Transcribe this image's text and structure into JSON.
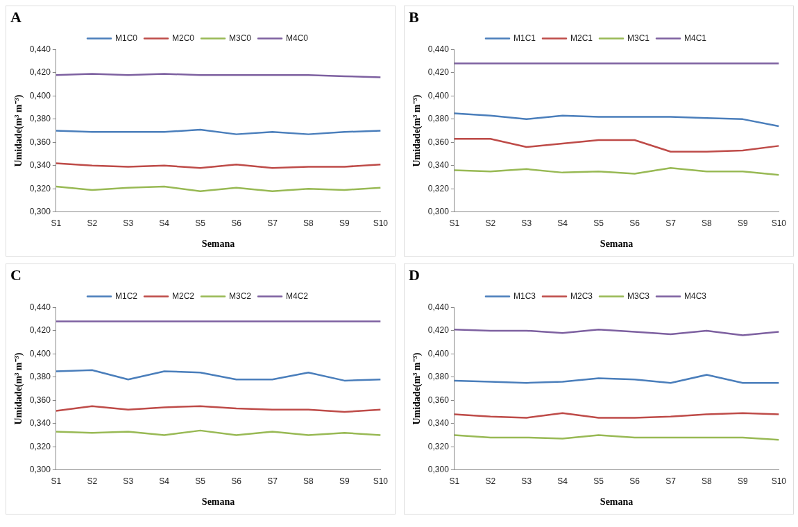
{
  "chart_data": [
    {
      "type": "line",
      "title": "A",
      "xlabel": "Semana",
      "ylabel": "Umidade(m³ m⁻³)",
      "categories": [
        "S1",
        "S2",
        "S3",
        "S4",
        "S5",
        "S6",
        "S7",
        "S8",
        "S9",
        "S10"
      ],
      "ylim": [
        0.3,
        0.44
      ],
      "yticks": [
        {
          "value": 0.3,
          "label": "0,300"
        },
        {
          "value": 0.32,
          "label": "0,320"
        },
        {
          "value": 0.34,
          "label": "0,340"
        },
        {
          "value": 0.36,
          "label": "0,360"
        },
        {
          "value": 0.38,
          "label": "0,380"
        },
        {
          "value": 0.4,
          "label": "0,400"
        },
        {
          "value": 0.42,
          "label": "0,420"
        },
        {
          "value": 0.44,
          "label": "0,440"
        }
      ],
      "grid": false,
      "legend": "top",
      "line_style": "solid",
      "series": [
        {
          "name": "M1C0",
          "color": "#4a7ebb",
          "values": [
            0.37,
            0.369,
            0.369,
            0.369,
            0.371,
            0.367,
            0.369,
            0.367,
            0.369,
            0.37
          ]
        },
        {
          "name": "M2C0",
          "color": "#be4b48",
          "values": [
            0.342,
            0.34,
            0.339,
            0.34,
            0.338,
            0.341,
            0.338,
            0.339,
            0.339,
            0.341
          ]
        },
        {
          "name": "M3C0",
          "color": "#98b954",
          "values": [
            0.322,
            0.319,
            0.321,
            0.322,
            0.318,
            0.321,
            0.318,
            0.32,
            0.319,
            0.321
          ]
        },
        {
          "name": "M4C0",
          "color": "#7d60a0",
          "values": [
            0.418,
            0.419,
            0.418,
            0.419,
            0.418,
            0.418,
            0.418,
            0.418,
            0.417,
            0.416
          ]
        }
      ]
    },
    {
      "type": "line",
      "title": "B",
      "xlabel": "Semana",
      "ylabel": "Umidade(m³ m⁻³)",
      "categories": [
        "S1",
        "S2",
        "S3",
        "S4",
        "S5",
        "S6",
        "S7",
        "S8",
        "S9",
        "S10"
      ],
      "ylim": [
        0.3,
        0.44
      ],
      "yticks": [
        {
          "value": 0.3,
          "label": "0,300"
        },
        {
          "value": 0.32,
          "label": "0,320"
        },
        {
          "value": 0.34,
          "label": "0,340"
        },
        {
          "value": 0.36,
          "label": "0,360"
        },
        {
          "value": 0.38,
          "label": "0,380"
        },
        {
          "value": 0.4,
          "label": "0,400"
        },
        {
          "value": 0.42,
          "label": "0,420"
        },
        {
          "value": 0.44,
          "label": "0,440"
        }
      ],
      "grid": false,
      "legend": "top",
      "line_style": "solid",
      "series": [
        {
          "name": "M1C1",
          "color": "#4a7ebb",
          "values": [
            0.385,
            0.383,
            0.38,
            0.383,
            0.382,
            0.382,
            0.382,
            0.381,
            0.38,
            0.374
          ]
        },
        {
          "name": "M2C1",
          "color": "#be4b48",
          "values": [
            0.363,
            0.363,
            0.356,
            0.359,
            0.362,
            0.362,
            0.352,
            0.352,
            0.353,
            0.357
          ]
        },
        {
          "name": "M3C1",
          "color": "#98b954",
          "values": [
            0.336,
            0.335,
            0.337,
            0.334,
            0.335,
            0.333,
            0.338,
            0.335,
            0.335,
            0.332
          ]
        },
        {
          "name": "M4C1",
          "color": "#7d60a0",
          "values": [
            0.428,
            0.428,
            0.428,
            0.428,
            0.428,
            0.428,
            0.428,
            0.428,
            0.428,
            0.428
          ]
        }
      ]
    },
    {
      "type": "line",
      "title": "C",
      "xlabel": "Semana",
      "ylabel": "Umidade(m³ m⁻³)",
      "categories": [
        "S1",
        "S2",
        "S3",
        "S4",
        "S5",
        "S6",
        "S7",
        "S8",
        "S9",
        "S10"
      ],
      "ylim": [
        0.3,
        0.44
      ],
      "yticks": [
        {
          "value": 0.3,
          "label": "0,300"
        },
        {
          "value": 0.32,
          "label": "0,320"
        },
        {
          "value": 0.34,
          "label": "0,340"
        },
        {
          "value": 0.36,
          "label": "0,360"
        },
        {
          "value": 0.38,
          "label": "0,380"
        },
        {
          "value": 0.4,
          "label": "0,400"
        },
        {
          "value": 0.42,
          "label": "0,420"
        },
        {
          "value": 0.44,
          "label": "0,440"
        }
      ],
      "grid": false,
      "legend": "top",
      "line_style": "solid",
      "series": [
        {
          "name": "M1C2",
          "color": "#4a7ebb",
          "values": [
            0.385,
            0.386,
            0.378,
            0.385,
            0.384,
            0.378,
            0.378,
            0.384,
            0.377,
            0.378
          ]
        },
        {
          "name": "M2C2",
          "color": "#be4b48",
          "values": [
            0.351,
            0.355,
            0.352,
            0.354,
            0.355,
            0.353,
            0.352,
            0.352,
            0.35,
            0.352
          ]
        },
        {
          "name": "M3C2",
          "color": "#98b954",
          "values": [
            0.333,
            0.332,
            0.333,
            0.33,
            0.334,
            0.33,
            0.333,
            0.33,
            0.332,
            0.33
          ]
        },
        {
          "name": "M4C2",
          "color": "#7d60a0",
          "values": [
            0.428,
            0.428,
            0.428,
            0.428,
            0.428,
            0.428,
            0.428,
            0.428,
            0.428,
            0.428
          ]
        }
      ]
    },
    {
      "type": "line",
      "title": "D",
      "xlabel": "Semana",
      "ylabel": "Umidade(m³ m⁻³)",
      "categories": [
        "S1",
        "S2",
        "S3",
        "S4",
        "S5",
        "S6",
        "S7",
        "S8",
        "S9",
        "S10"
      ],
      "ylim": [
        0.3,
        0.44
      ],
      "yticks": [
        {
          "value": 0.3,
          "label": "0,300"
        },
        {
          "value": 0.32,
          "label": "0,320"
        },
        {
          "value": 0.34,
          "label": "0,340"
        },
        {
          "value": 0.36,
          "label": "0,360"
        },
        {
          "value": 0.38,
          "label": "0,380"
        },
        {
          "value": 0.4,
          "label": "0,400"
        },
        {
          "value": 0.42,
          "label": "0,420"
        },
        {
          "value": 0.44,
          "label": "0,440"
        }
      ],
      "grid": false,
      "legend": "top",
      "line_style": "solid",
      "series": [
        {
          "name": "M1C3",
          "color": "#4a7ebb",
          "values": [
            0.377,
            0.376,
            0.375,
            0.376,
            0.379,
            0.378,
            0.375,
            0.382,
            0.375,
            0.375
          ]
        },
        {
          "name": "M2C3",
          "color": "#be4b48",
          "values": [
            0.348,
            0.346,
            0.345,
            0.349,
            0.345,
            0.345,
            0.346,
            0.348,
            0.349,
            0.348
          ]
        },
        {
          "name": "M3C3",
          "color": "#98b954",
          "values": [
            0.33,
            0.328,
            0.328,
            0.327,
            0.33,
            0.328,
            0.328,
            0.328,
            0.328,
            0.326
          ]
        },
        {
          "name": "M4C3",
          "color": "#7d60a0",
          "values": [
            0.421,
            0.42,
            0.42,
            0.418,
            0.421,
            0.419,
            0.417,
            0.42,
            0.416,
            0.419
          ]
        }
      ]
    }
  ]
}
